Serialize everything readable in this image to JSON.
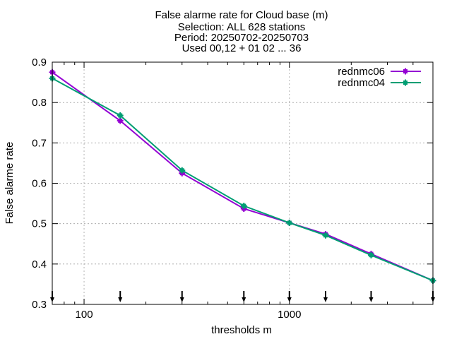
{
  "chart_data": {
    "type": "line",
    "title_lines": [
      "False alarme rate  for Cloud base (m)",
      "Selection: ALL    628 stations",
      "Period: 20250702-20250703",
      "Used 00,12 + 01 02 ... 36"
    ],
    "xlabel": "thresholds m",
    "ylabel": "False alarme rate",
    "x_scale": "log",
    "xlim": [
      70,
      5000
    ],
    "ylim": [
      0.3,
      0.9
    ],
    "x_ticks_major": [
      100,
      1000
    ],
    "x_tick_labels": [
      "100",
      "1000"
    ],
    "y_ticks": [
      0.3,
      0.4,
      0.5,
      0.6,
      0.7,
      0.8,
      0.9
    ],
    "y_tick_labels": [
      "0.3",
      "0.4",
      "0.5",
      "0.6",
      "0.7",
      "0.8",
      "0.9"
    ],
    "grid": true,
    "legend_position": "top-right",
    "threshold_markers": [
      70,
      150,
      300,
      600,
      1000,
      1500,
      2500,
      5000
    ],
    "series": [
      {
        "name": "rednmc06",
        "color": "#9400d3",
        "x": [
          70,
          150,
          300,
          600,
          1000,
          1500,
          2500,
          5000
        ],
        "y": [
          0.875,
          0.755,
          0.625,
          0.537,
          0.502,
          0.474,
          0.425,
          0.359
        ]
      },
      {
        "name": "rednmc04",
        "color": "#009e73",
        "x": [
          70,
          150,
          300,
          600,
          1000,
          1500,
          2500,
          5000
        ],
        "y": [
          0.86,
          0.768,
          0.632,
          0.544,
          0.502,
          0.471,
          0.422,
          0.359
        ]
      }
    ]
  }
}
